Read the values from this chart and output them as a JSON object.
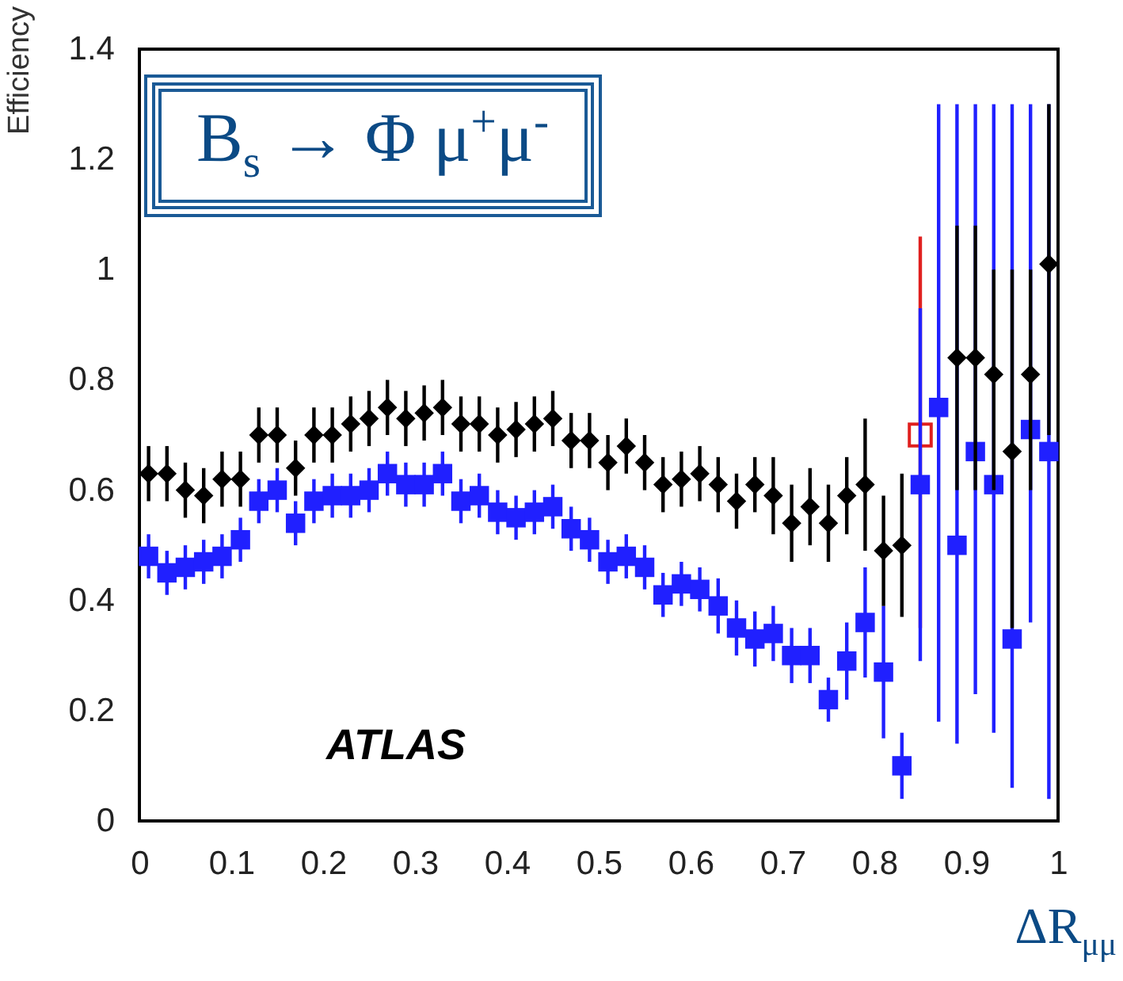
{
  "chart_data": {
    "type": "scatter",
    "title": "B$_{s}$ → Φ μ$^{+}$μ$^{-}$",
    "xlabel": "ΔR$_{μμ}$",
    "ylabel": "Efficiency",
    "annotations": [
      "ATLAS"
    ],
    "x": [
      0.01,
      0.03,
      0.05,
      0.07,
      0.09,
      0.11,
      0.13,
      0.15,
      0.17,
      0.19,
      0.21,
      0.23,
      0.25,
      0.27,
      0.29,
      0.31,
      0.33,
      0.35,
      0.37,
      0.39,
      0.41,
      0.43,
      0.45,
      0.47,
      0.49,
      0.51,
      0.53,
      0.55,
      0.57,
      0.59,
      0.61,
      0.63,
      0.65,
      0.67,
      0.69,
      0.71,
      0.73,
      0.75,
      0.77,
      0.79,
      0.81,
      0.83,
      0.85,
      0.87,
      0.89,
      0.91,
      0.93,
      0.95,
      0.97,
      0.99
    ],
    "xlim": [
      0,
      1
    ],
    "xticks": [
      0,
      0.1,
      0.2,
      0.3,
      0.4,
      0.5,
      0.6,
      0.7,
      0.8,
      0.9,
      1
    ],
    "ylim": [
      0,
      1.4
    ],
    "yticks": [
      {
        "value": 0,
        "label": "0"
      },
      0.2,
      0.4,
      0.6,
      0.8,
      {
        "value": 1,
        "label": "1"
      },
      1.2,
      1.4
    ],
    "series": [
      {
        "color": "#e0201f",
        "marker": "square",
        "values": [
          null,
          null,
          null,
          null,
          null,
          null,
          null,
          null,
          null,
          null,
          null,
          null,
          null,
          null,
          null,
          null,
          null,
          null,
          null,
          null,
          null,
          null,
          null,
          null,
          null,
          null,
          null,
          null,
          null,
          null,
          null,
          null,
          null,
          null,
          null,
          null,
          null,
          null,
          null,
          null,
          null,
          null,
          0.7,
          null,
          null,
          null,
          null,
          null,
          null,
          null
        ],
        "errors": [
          null,
          null,
          null,
          null,
          null,
          null,
          null,
          null,
          null,
          null,
          null,
          null,
          null,
          null,
          null,
          null,
          null,
          null,
          null,
          null,
          null,
          null,
          null,
          null,
          null,
          null,
          null,
          null,
          null,
          null,
          null,
          null,
          null,
          null,
          null,
          null,
          null,
          null,
          null,
          null,
          null,
          null,
          [
            0.35,
            1.06
          ],
          null,
          null,
          null,
          null,
          null,
          null,
          null
        ]
      },
      {
        "color": "#2020ff",
        "marker": "square",
        "values": [
          0.48,
          0.45,
          0.46,
          0.47,
          0.48,
          0.51,
          0.58,
          0.6,
          0.54,
          0.58,
          0.59,
          0.59,
          0.6,
          0.63,
          0.61,
          0.61,
          0.63,
          0.58,
          0.59,
          0.56,
          0.55,
          0.56,
          0.57,
          0.53,
          0.51,
          0.47,
          0.48,
          0.46,
          0.41,
          0.43,
          0.42,
          0.39,
          0.35,
          0.33,
          0.34,
          0.3,
          0.3,
          0.22,
          0.29,
          0.36,
          0.27,
          0.1,
          0.61,
          0.75,
          0.5,
          0.67,
          0.61,
          0.33,
          0.71,
          0.67
        ],
        "errors": [
          0.04,
          0.04,
          0.04,
          0.04,
          0.04,
          0.04,
          0.04,
          0.04,
          0.04,
          0.04,
          0.04,
          0.04,
          0.04,
          0.04,
          0.04,
          0.04,
          0.04,
          0.04,
          0.04,
          0.04,
          0.04,
          0.04,
          0.04,
          0.04,
          0.04,
          0.04,
          0.04,
          0.04,
          0.04,
          0.04,
          0.04,
          0.05,
          0.05,
          0.05,
          0.05,
          0.05,
          0.05,
          0.04,
          0.07,
          0.1,
          0.12,
          0.06,
          [
            0.29,
            0.93
          ],
          [
            0.18,
            1.3
          ],
          [
            0.14,
            1.3
          ],
          [
            0.23,
            1.3
          ],
          [
            0.16,
            1.3
          ],
          [
            0.06,
            1.3
          ],
          [
            0.36,
            1.3
          ],
          [
            0.04,
            1.3
          ]
        ]
      },
      {
        "color": "#000000",
        "marker": "diamond",
        "values": [
          0.63,
          0.63,
          0.6,
          0.59,
          0.62,
          0.62,
          0.7,
          0.7,
          0.64,
          0.7,
          0.7,
          0.72,
          0.73,
          0.75,
          0.73,
          0.74,
          0.75,
          0.72,
          0.72,
          0.7,
          0.71,
          0.72,
          0.73,
          0.69,
          0.69,
          0.65,
          0.68,
          0.65,
          0.61,
          0.62,
          0.63,
          0.61,
          0.58,
          0.61,
          0.59,
          0.54,
          0.57,
          0.54,
          0.59,
          0.61,
          0.49,
          0.5,
          null,
          null,
          0.84,
          0.84,
          0.81,
          0.67,
          0.81,
          1.01
        ],
        "errors": [
          0.05,
          0.05,
          0.05,
          0.05,
          0.05,
          0.05,
          0.05,
          0.05,
          0.05,
          0.05,
          0.05,
          0.05,
          0.05,
          0.05,
          0.05,
          0.05,
          0.05,
          0.05,
          0.05,
          0.05,
          0.05,
          0.05,
          0.05,
          0.05,
          0.05,
          0.05,
          0.05,
          0.05,
          0.05,
          0.05,
          0.05,
          0.05,
          0.05,
          0.05,
          0.07,
          0.07,
          0.07,
          0.07,
          0.07,
          0.12,
          0.1,
          0.13,
          null,
          null,
          [
            0.6,
            1.08
          ],
          [
            0.6,
            1.08
          ],
          [
            0.6,
            1.0
          ],
          [
            0.35,
            1.0
          ],
          [
            0.6,
            1.0
          ],
          [
            0.7,
            1.3
          ]
        ]
      }
    ]
  }
}
